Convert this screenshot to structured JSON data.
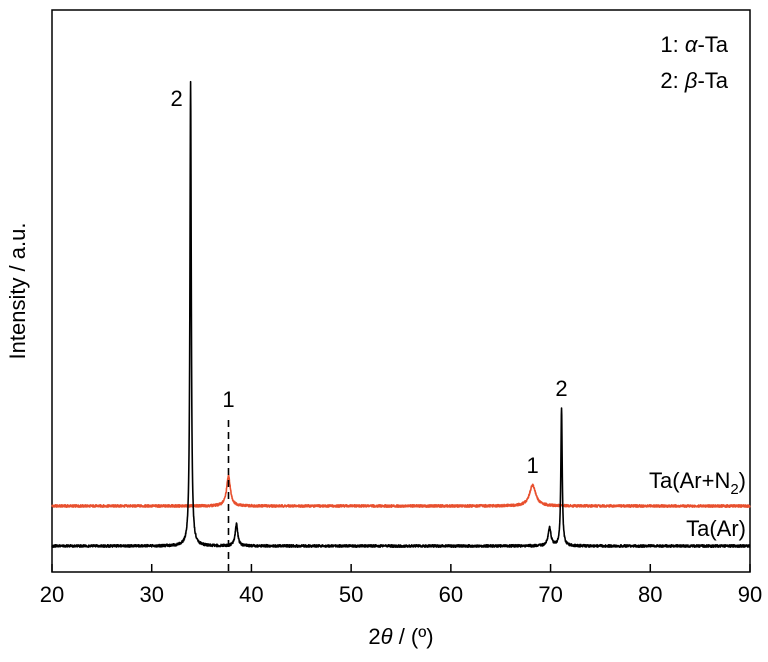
{
  "chart_data": {
    "type": "line",
    "xlabel": {
      "prefix": "2",
      "symbol": "θ",
      "suffix": " / (º)"
    },
    "ylabel": "Intensity / a.u.",
    "xlim": [
      20,
      90
    ],
    "xticks": [
      20,
      30,
      40,
      50,
      60,
      70,
      80,
      90
    ],
    "grid": false,
    "legend": {
      "placement": "top-right",
      "entries": [
        {
          "num": "1: ",
          "greek": "α",
          "rest": "-Ta"
        },
        {
          "num": "2: ",
          "greek": "β",
          "rest": "-Ta"
        }
      ]
    },
    "series": [
      {
        "name": "Ta(Ar+N₂)",
        "label_parts": {
          "main": "Ta(Ar+N",
          "sub": "2",
          "close": ")"
        },
        "color": "#e8502e",
        "baseline": 1.0,
        "peaks": [
          {
            "x": 37.7,
            "height": 0.75,
            "width": 0.45
          },
          {
            "x": 68.2,
            "height": 0.52,
            "width": 0.75
          }
        ]
      },
      {
        "name": "Ta(Ar)",
        "label_parts": {
          "main": "Ta(Ar)",
          "sub": "",
          "close": ""
        },
        "color": "#000000",
        "baseline": 0.0,
        "peaks": [
          {
            "x": 33.9,
            "height": 11.6,
            "width": 0.16
          },
          {
            "x": 38.5,
            "height": 0.55,
            "width": 0.3
          },
          {
            "x": 69.9,
            "height": 0.45,
            "width": 0.35
          },
          {
            "x": 71.1,
            "height": 3.45,
            "width": 0.16
          }
        ]
      }
    ],
    "annotations": [
      {
        "label": "2",
        "x": 33.9
      },
      {
        "label": "1",
        "x": 37.7,
        "dashed": true
      },
      {
        "label": "1",
        "x": 68.2
      },
      {
        "label": "2",
        "x": 71.1
      }
    ]
  }
}
